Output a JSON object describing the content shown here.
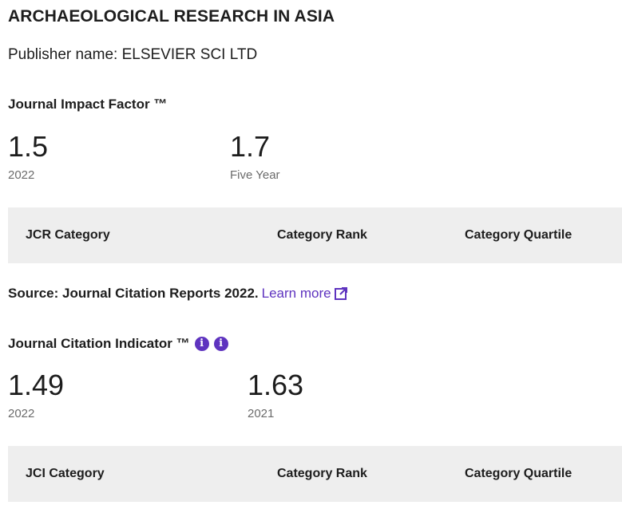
{
  "journal": {
    "title": "ARCHAEOLOGICAL RESEARCH IN ASIA",
    "publisher": "Publisher name: ELSEVIER SCI LTD"
  },
  "jif": {
    "label": "Journal Impact Factor ™",
    "value_2022": "1.5",
    "label_2022": "2022",
    "value_five_year": "1.7",
    "label_five_year": "Five Year"
  },
  "jcr_table": {
    "col_category": "JCR Category",
    "col_rank": "Category Rank",
    "col_quartile": "Category Quartile"
  },
  "source": {
    "text": "Source: Journal Citation Reports  2022.",
    "link_label": "Learn more"
  },
  "jci": {
    "label": "Journal Citation Indicator ™",
    "value_2022": "1.49",
    "label_2022": "2022",
    "value_2021": "1.63",
    "label_2021": "2021"
  },
  "jci_table": {
    "col_category": "JCI Category",
    "col_rank": "Category Rank",
    "col_quartile": "Category Quartile"
  },
  "colors": {
    "accent": "#5e33bf",
    "table_header_bg": "#eeeeee",
    "muted_text": "#6b6b6b"
  },
  "icons": [
    "external-link-icon",
    "info-icon"
  ]
}
